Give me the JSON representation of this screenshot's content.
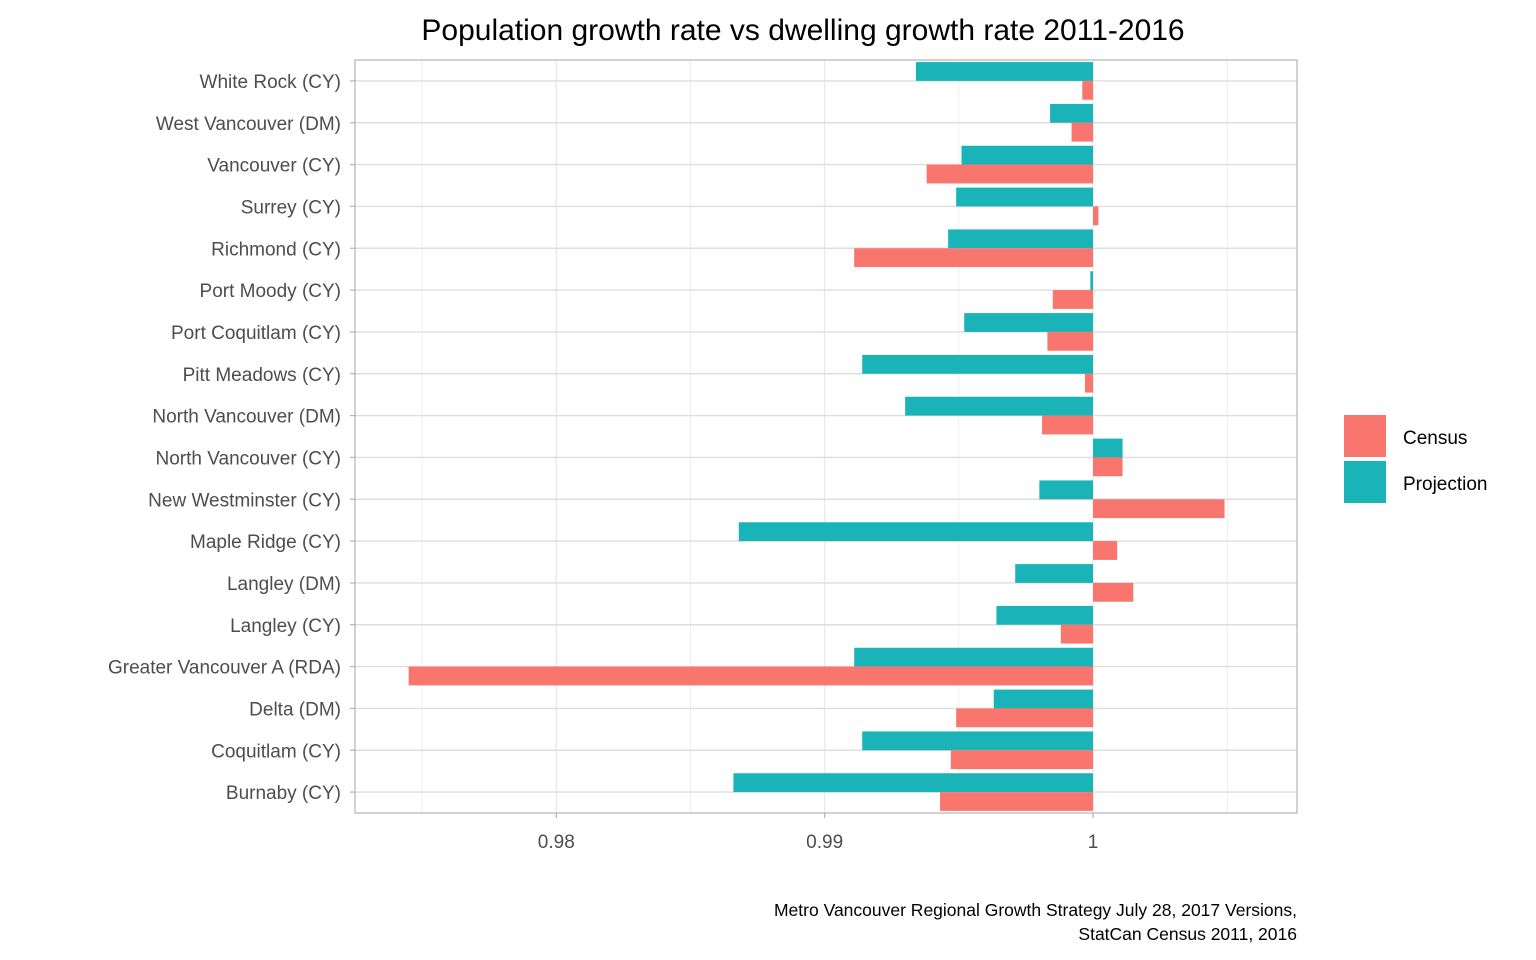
{
  "chart_data": {
    "type": "bar",
    "orientation": "horizontal",
    "title": "Population growth rate vs dwelling growth rate 2011-2016",
    "xlabel": "",
    "ylabel": "",
    "xlim": [
      0.9725,
      1.0076
    ],
    "baseline": 1,
    "x_ticks": [
      0.98,
      0.99,
      1
    ],
    "x_tick_labels": [
      "0.98",
      "0.99",
      "1"
    ],
    "grid": true,
    "legend_position": "right",
    "categories": [
      "White Rock (CY)",
      "West Vancouver (DM)",
      "Vancouver (CY)",
      "Surrey (CY)",
      "Richmond (CY)",
      "Port Moody (CY)",
      "Port Coquitlam (CY)",
      "Pitt Meadows (CY)",
      "North Vancouver (DM)",
      "North Vancouver (CY)",
      "New Westminster (CY)",
      "Maple Ridge (CY)",
      "Langley (DM)",
      "Langley (CY)",
      "Greater Vancouver A (RDA)",
      "Delta (DM)",
      "Coquitlam (CY)",
      "Burnaby (CY)"
    ],
    "series": [
      {
        "name": "Census",
        "color": "#F8766D",
        "values": [
          0.9996,
          0.9992,
          0.9938,
          1.0002,
          0.9911,
          0.9985,
          0.9983,
          0.9997,
          0.9981,
          1.0011,
          1.0049,
          1.0009,
          1.0015,
          0.9988,
          0.9745,
          0.9949,
          0.9947,
          0.9943
        ]
      },
      {
        "name": "Projection",
        "color": "#00BFC4",
        "values": [
          0.9934,
          0.9984,
          0.9951,
          0.9949,
          0.9946,
          0.9999,
          0.9952,
          0.9914,
          0.993,
          1.0011,
          0.998,
          0.9868,
          0.9971,
          0.9964,
          0.9911,
          0.9963,
          0.9914,
          0.9866
        ]
      }
    ],
    "caption": [
      "Metro Vancouver Regional Growth Strategy July 28, 2017 Versions,",
      "StatCan Census 2011, 2016"
    ]
  },
  "legend": {
    "items": [
      {
        "label": "Census",
        "color": "#F8766D"
      },
      {
        "label": "Projection",
        "color": "#1AB4B8"
      }
    ]
  }
}
